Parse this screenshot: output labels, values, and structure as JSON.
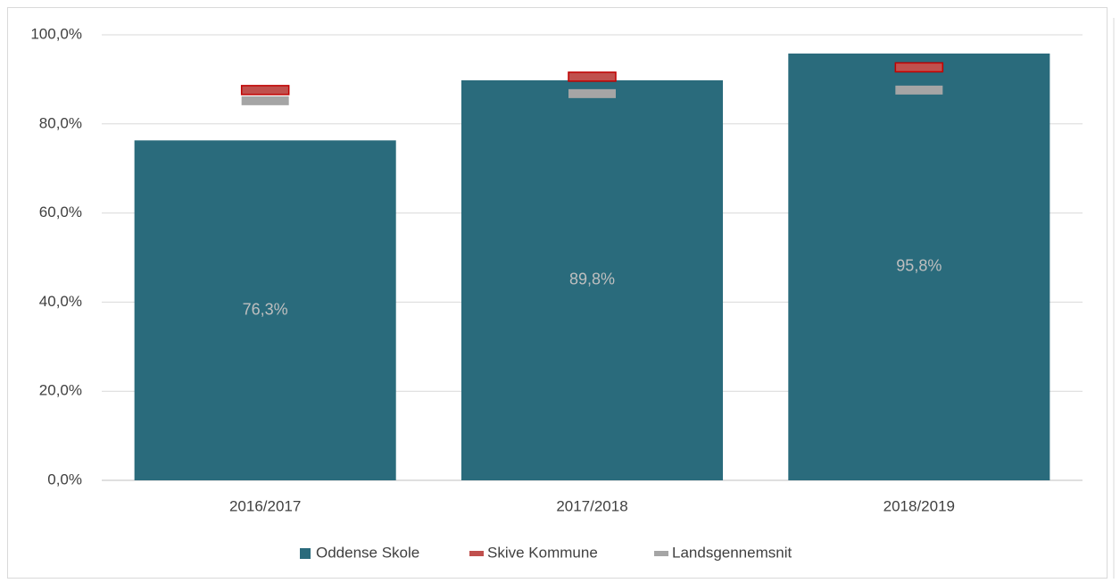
{
  "chart_data": {
    "type": "bar",
    "categories": [
      "2016/2017",
      "2017/2018",
      "2018/2019"
    ],
    "series": [
      {
        "name": "Oddense Skole",
        "type": "bar",
        "color": "#2a6b7c",
        "values": [
          76.3,
          89.8,
          95.8
        ],
        "value_labels": [
          "76,3%",
          "89,8%",
          "95,8%"
        ]
      },
      {
        "name": "Skive Kommune",
        "type": "marker",
        "color": "#c0504d",
        "values": [
          87.6,
          90.6,
          92.7
        ]
      },
      {
        "name": "Landsgennemsnit",
        "type": "marker",
        "color": "#a5a5a5",
        "values": [
          85.2,
          86.8,
          87.6
        ]
      }
    ],
    "ylim": [
      0,
      100
    ],
    "yticks": [
      {
        "value": 0,
        "label": "0,0%"
      },
      {
        "value": 20,
        "label": "20,0%"
      },
      {
        "value": 40,
        "label": "40,0%"
      },
      {
        "value": 60,
        "label": "60,0%"
      },
      {
        "value": 80,
        "label": "80,0%"
      },
      {
        "value": 100,
        "label": "100,0%"
      }
    ],
    "grid": true,
    "legend": "bottom"
  }
}
